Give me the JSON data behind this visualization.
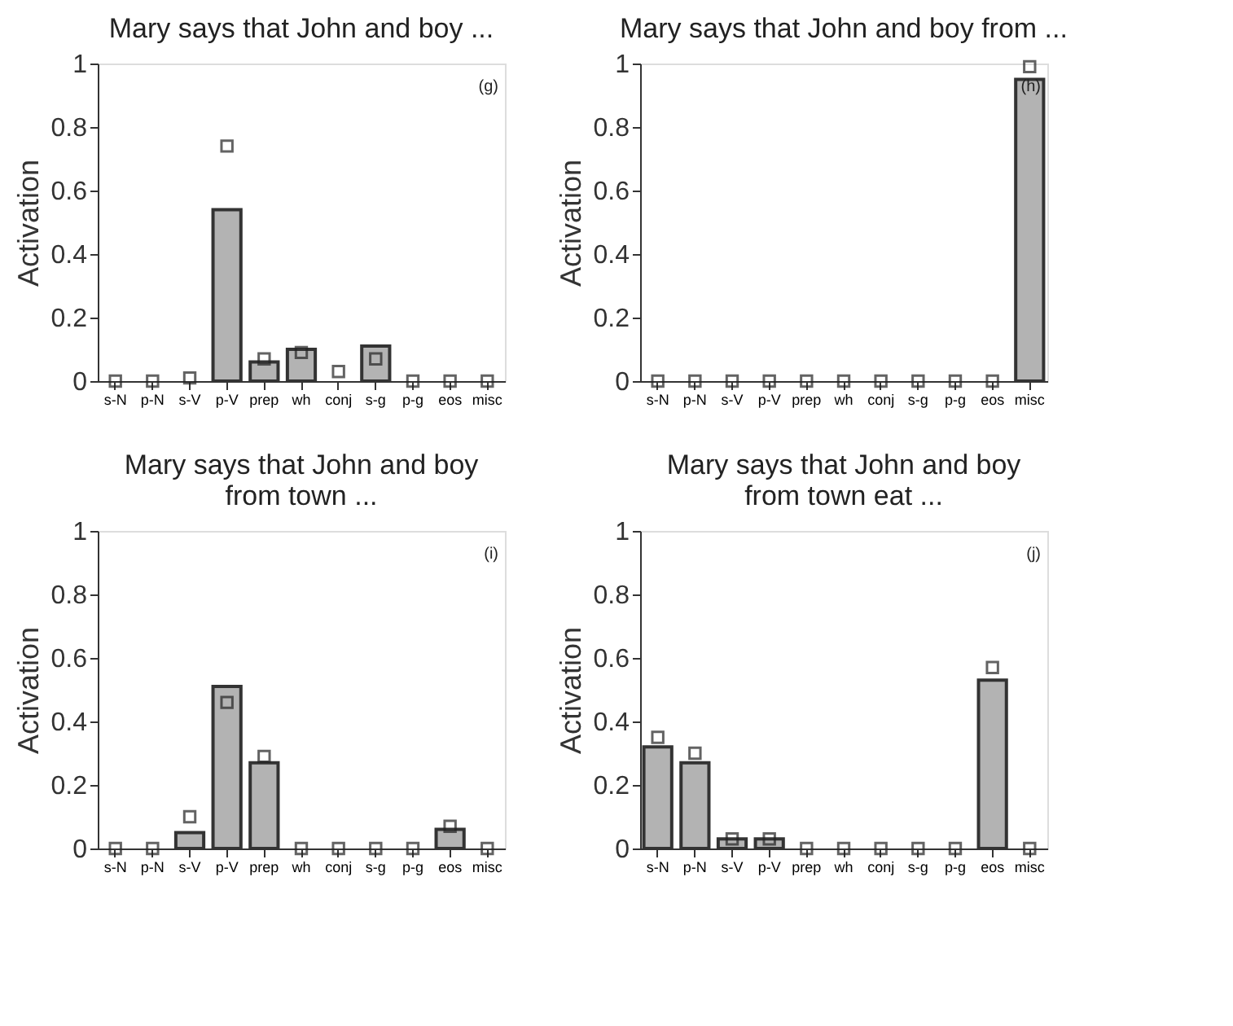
{
  "chart_data": [
    {
      "type": "bar",
      "title": "Mary says that John and boy ...",
      "ylabel": "Activation",
      "annotations": [
        "(g)"
      ],
      "categories": [
        "s-N",
        "p-N",
        "s-V",
        "p-V",
        "prep",
        "wh",
        "conj",
        "s-g",
        "p-g",
        "eos",
        "misc"
      ],
      "ylim": [
        0,
        1
      ],
      "yticks": [
        0,
        0.2,
        0.4,
        0.6,
        0.8,
        1
      ],
      "grid": false,
      "series": [
        {
          "color": "#b3b3b3",
          "values": [
            0,
            0,
            0,
            0.54,
            0.06,
            0.1,
            0,
            0.11,
            0,
            0,
            0
          ]
        },
        {
          "type": "scatter",
          "marker": "square",
          "color": "#222222",
          "values": [
            0,
            0,
            0.01,
            0.74,
            0.07,
            0.09,
            0.03,
            0.07,
            0,
            0,
            0
          ]
        }
      ]
    },
    {
      "type": "bar",
      "title": "Mary says that John and boy from ...",
      "ylabel": "Activation",
      "annotations": [
        "(h)"
      ],
      "categories": [
        "s-N",
        "p-N",
        "s-V",
        "p-V",
        "prep",
        "wh",
        "conj",
        "s-g",
        "p-g",
        "eos",
        "misc"
      ],
      "ylim": [
        0,
        1
      ],
      "yticks": [
        0,
        0.2,
        0.4,
        0.6,
        0.8,
        1
      ],
      "grid": false,
      "series": [
        {
          "color": "#b3b3b3",
          "values": [
            0,
            0,
            0,
            0,
            0,
            0,
            0,
            0,
            0,
            0,
            0.95
          ]
        },
        {
          "type": "scatter",
          "marker": "square",
          "color": "#222222",
          "values": [
            0,
            0,
            0,
            0,
            0,
            0,
            0,
            0,
            0,
            0,
            0.99
          ]
        }
      ]
    },
    {
      "type": "bar",
      "title": "Mary says that John and boy\nfrom town ...",
      "ylabel": "Activation",
      "annotations": [
        "(i)"
      ],
      "categories": [
        "s-N",
        "p-N",
        "s-V",
        "p-V",
        "prep",
        "wh",
        "conj",
        "s-g",
        "p-g",
        "eos",
        "misc"
      ],
      "ylim": [
        0,
        1
      ],
      "yticks": [
        0,
        0.2,
        0.4,
        0.6,
        0.8,
        1
      ],
      "grid": false,
      "series": [
        {
          "color": "#b3b3b3",
          "values": [
            0,
            0,
            0.05,
            0.51,
            0.27,
            0,
            0,
            0,
            0,
            0.06,
            0
          ]
        },
        {
          "type": "scatter",
          "marker": "square",
          "color": "#222222",
          "values": [
            0,
            0,
            0.1,
            0.46,
            0.29,
            0,
            0,
            0,
            0,
            0.07,
            0
          ]
        }
      ]
    },
    {
      "type": "bar",
      "title": "Mary says that John and boy\nfrom town eat ...",
      "ylabel": "Activation",
      "annotations": [
        "(j)"
      ],
      "categories": [
        "s-N",
        "p-N",
        "s-V",
        "p-V",
        "prep",
        "wh",
        "conj",
        "s-g",
        "p-g",
        "eos",
        "misc"
      ],
      "ylim": [
        0,
        1
      ],
      "yticks": [
        0,
        0.2,
        0.4,
        0.6,
        0.8,
        1
      ],
      "grid": false,
      "series": [
        {
          "color": "#b3b3b3",
          "values": [
            0.32,
            0.27,
            0.03,
            0.03,
            0,
            0,
            0,
            0,
            0,
            0.53,
            0
          ]
        },
        {
          "type": "scatter",
          "marker": "square",
          "color": "#222222",
          "values": [
            0.35,
            0.3,
            0.03,
            0.03,
            0,
            0,
            0,
            0,
            0,
            0.57,
            0
          ]
        }
      ]
    }
  ]
}
